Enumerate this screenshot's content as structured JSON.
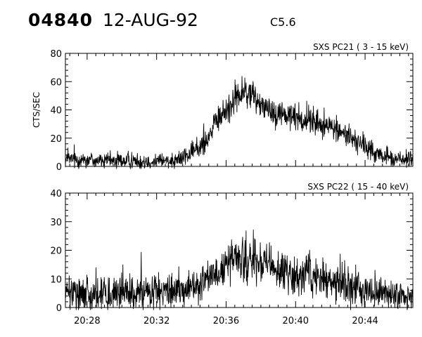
{
  "header": {
    "event_id": "04840",
    "date": "12-AUG-92",
    "flare_class": "C5.6"
  },
  "chart_data": [
    {
      "type": "line",
      "title": "SXS PC21  (  3 - 15 keV)",
      "xlabel": "",
      "ylabel": "CTS/SEC",
      "xlim": [
        "20:26:45",
        "20:46:45"
      ],
      "ylim": [
        0,
        80
      ],
      "yticks": [
        0,
        20,
        40,
        60,
        80
      ],
      "xticks": [
        "20:28",
        "20:32",
        "20:36",
        "20:40",
        "20:44"
      ],
      "grid": false,
      "series": [
        {
          "x": [
            "20:26:45",
            "20:28:00",
            "20:29:00",
            "20:30:00",
            "20:31:00",
            "20:32:00",
            "20:32:30",
            "20:33:00",
            "20:33:30",
            "20:34:00",
            "20:34:30",
            "20:35:00",
            "20:35:30",
            "20:36:00",
            "20:36:30",
            "20:37:00",
            "20:37:30",
            "20:38:00",
            "20:38:30",
            "20:39:00",
            "20:39:30",
            "20:40:00",
            "20:40:30",
            "20:41:00",
            "20:41:30",
            "20:42:00",
            "20:42:30",
            "20:43:00",
            "20:43:30",
            "20:44:00",
            "20:44:30",
            "20:45:00",
            "20:45:30",
            "20:46:00",
            "20:46:45"
          ],
          "y": [
            5,
            5,
            4,
            4,
            4,
            4,
            4,
            5,
            6,
            9,
            14,
            22,
            32,
            40,
            48,
            52,
            50,
            45,
            40,
            38,
            36,
            35,
            33,
            32,
            30,
            28,
            25,
            22,
            18,
            14,
            10,
            7,
            6,
            5,
            5
          ]
        }
      ]
    },
    {
      "type": "line",
      "title": "SXS PC22  ( 15 - 40 keV)",
      "xlabel": "",
      "ylabel": "",
      "xlim": [
        "20:26:45",
        "20:46:45"
      ],
      "ylim": [
        0,
        40
      ],
      "yticks": [
        0,
        10,
        20,
        30,
        40
      ],
      "xticks": [
        "20:28",
        "20:32",
        "20:36",
        "20:40",
        "20:44"
      ],
      "grid": false,
      "series": [
        {
          "x": [
            "20:26:45",
            "20:28:00",
            "20:29:00",
            "20:30:00",
            "20:31:00",
            "20:32:00",
            "20:32:30",
            "20:33:00",
            "20:33:30",
            "20:34:00",
            "20:34:30",
            "20:35:00",
            "20:35:30",
            "20:36:00",
            "20:36:30",
            "20:37:00",
            "20:37:30",
            "20:38:00",
            "20:38:30",
            "20:39:00",
            "20:39:30",
            "20:40:00",
            "20:40:30",
            "20:41:00",
            "20:41:30",
            "20:42:00",
            "20:42:30",
            "20:43:00",
            "20:43:30",
            "20:44:00",
            "20:44:30",
            "20:45:00",
            "20:45:30",
            "20:46:00",
            "20:46:45"
          ],
          "y": [
            5,
            5,
            5,
            5,
            5,
            5,
            5,
            6,
            6,
            7,
            8,
            10,
            12,
            15,
            17,
            17,
            16,
            15,
            14,
            13,
            12,
            12,
            11,
            11,
            10,
            10,
            9,
            8,
            7,
            6,
            5,
            5,
            4,
            4,
            4
          ]
        }
      ]
    }
  ]
}
